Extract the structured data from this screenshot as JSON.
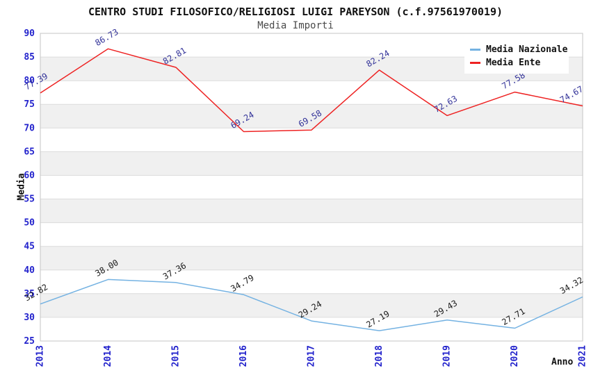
{
  "header": {
    "title": "CENTRO STUDI FILOSOFICO/RELIGIOSI LUIGI PAREYSON (c.f.97561970019)",
    "subtitle": "Media Importi"
  },
  "chart_data": {
    "type": "line",
    "title": "CENTRO STUDI FILOSOFICO/RELIGIOSI LUIGI PAREYSON (c.f.97561970019)",
    "subtitle": "Media Importi",
    "xlabel": "Anno",
    "ylabel": "Media",
    "x": [
      2013,
      2014,
      2015,
      2016,
      2017,
      2018,
      2019,
      2020,
      2021
    ],
    "ylim": [
      25,
      90
    ],
    "ytick_step": 5,
    "grid": "horizontal-bands-alternating",
    "legend_position": "top-right",
    "series": [
      {
        "key": "media-nazionale",
        "name": "Media Nazionale",
        "color": "#74B2E2",
        "label_color": "#1a1a1a",
        "values": [
          32.82,
          38.0,
          37.36,
          34.79,
          29.24,
          27.19,
          29.43,
          27.71,
          34.32
        ],
        "labels": [
          "32.82",
          "38.00",
          "37.36",
          "34.79",
          "29.24",
          "27.19",
          "29.43",
          "27.71",
          "34.32"
        ]
      },
      {
        "key": "media-ente",
        "name": "Media Ente",
        "color": "#EE2222",
        "label_color": "#333399",
        "values": [
          77.39,
          86.73,
          82.81,
          69.24,
          69.58,
          82.24,
          72.63,
          77.58,
          74.67
        ],
        "labels": [
          "77.39",
          "86.73",
          "82.81",
          "69.24",
          "69.58",
          "82.24",
          "72.63",
          "77.58",
          "74.67"
        ]
      }
    ],
    "colors": {
      "tick_label": "#2222CC",
      "band": "#F0F0F0",
      "gridline": "#DCDCDC",
      "border": "#C4C4C4"
    }
  }
}
